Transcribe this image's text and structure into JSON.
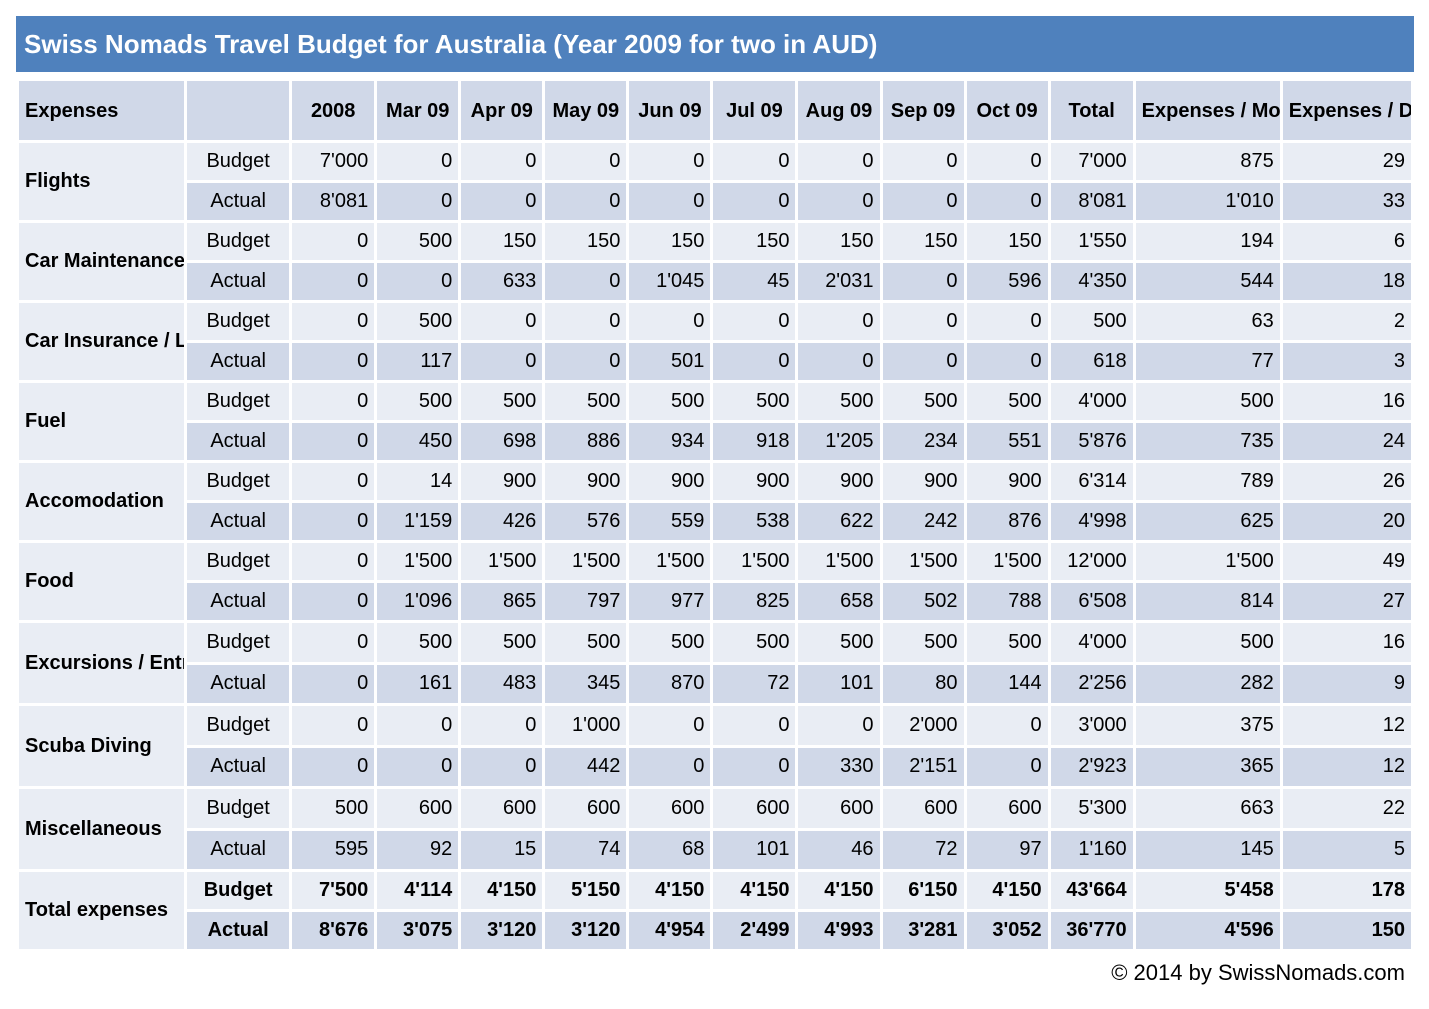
{
  "title": "Swiss Nomads Travel Budget for Australia (Year 2009 for two in AUD)",
  "headers": [
    "Expenses",
    "",
    "2008",
    "Mar 09",
    "Apr 09",
    "May 09",
    "Jun 09",
    "Jul 09",
    "Aug 09",
    "Sep 09",
    "Oct 09",
    "Total",
    "Expenses / Month",
    "Expenses / Day"
  ],
  "categories": [
    {
      "name": "Flights",
      "rows": [
        {
          "type": "Budget",
          "values": [
            "7'000",
            "0",
            "0",
            "0",
            "0",
            "0",
            "0",
            "0",
            "0",
            "7'000",
            "875",
            "29"
          ]
        },
        {
          "type": "Actual",
          "values": [
            "8'081",
            "0",
            "0",
            "0",
            "0",
            "0",
            "0",
            "0",
            "0",
            "8'081",
            "1'010",
            "33"
          ]
        }
      ]
    },
    {
      "name": "Car Maintenance",
      "rows": [
        {
          "type": "Budget",
          "values": [
            "0",
            "500",
            "150",
            "150",
            "150",
            "150",
            "150",
            "150",
            "150",
            "1'550",
            "194",
            "6"
          ]
        },
        {
          "type": "Actual",
          "values": [
            "0",
            "0",
            "633",
            "0",
            "1'045",
            "45",
            "2'031",
            "0",
            "596",
            "4'350",
            "544",
            "18"
          ]
        }
      ]
    },
    {
      "name": "Car Insurance / Licence",
      "rows": [
        {
          "type": "Budget",
          "values": [
            "0",
            "500",
            "0",
            "0",
            "0",
            "0",
            "0",
            "0",
            "0",
            "500",
            "63",
            "2"
          ]
        },
        {
          "type": "Actual",
          "values": [
            "0",
            "117",
            "0",
            "0",
            "501",
            "0",
            "0",
            "0",
            "0",
            "618",
            "77",
            "3"
          ]
        }
      ]
    },
    {
      "name": "Fuel",
      "rows": [
        {
          "type": "Budget",
          "values": [
            "0",
            "500",
            "500",
            "500",
            "500",
            "500",
            "500",
            "500",
            "500",
            "4'000",
            "500",
            "16"
          ]
        },
        {
          "type": "Actual",
          "values": [
            "0",
            "450",
            "698",
            "886",
            "934",
            "918",
            "1'205",
            "234",
            "551",
            "5'876",
            "735",
            "24"
          ]
        }
      ]
    },
    {
      "name": "Accomodation",
      "rows": [
        {
          "type": "Budget",
          "values": [
            "0",
            "14",
            "900",
            "900",
            "900",
            "900",
            "900",
            "900",
            "900",
            "6'314",
            "789",
            "26"
          ]
        },
        {
          "type": "Actual",
          "values": [
            "0",
            "1'159",
            "426",
            "576",
            "559",
            "538",
            "622",
            "242",
            "876",
            "4'998",
            "625",
            "20"
          ]
        }
      ]
    },
    {
      "name": "Food",
      "rows": [
        {
          "type": "Budget",
          "values": [
            "0",
            "1'500",
            "1'500",
            "1'500",
            "1'500",
            "1'500",
            "1'500",
            "1'500",
            "1'500",
            "12'000",
            "1'500",
            "49"
          ]
        },
        {
          "type": "Actual",
          "values": [
            "0",
            "1'096",
            "865",
            "797",
            "977",
            "825",
            "658",
            "502",
            "788",
            "6'508",
            "814",
            "27"
          ]
        }
      ]
    },
    {
      "name": "Excursions / Entrance fees",
      "rows": [
        {
          "type": "Budget",
          "values": [
            "0",
            "500",
            "500",
            "500",
            "500",
            "500",
            "500",
            "500",
            "500",
            "4'000",
            "500",
            "16"
          ]
        },
        {
          "type": "Actual",
          "values": [
            "0",
            "161",
            "483",
            "345",
            "870",
            "72",
            "101",
            "80",
            "144",
            "2'256",
            "282",
            "9"
          ]
        }
      ]
    },
    {
      "name": "Scuba Diving",
      "rows": [
        {
          "type": "Budget",
          "values": [
            "0",
            "0",
            "0",
            "1'000",
            "0",
            "0",
            "0",
            "2'000",
            "0",
            "3'000",
            "375",
            "12"
          ]
        },
        {
          "type": "Actual",
          "values": [
            "0",
            "0",
            "0",
            "442",
            "0",
            "0",
            "330",
            "2'151",
            "0",
            "2'923",
            "365",
            "12"
          ]
        }
      ]
    },
    {
      "name": "Miscellaneous",
      "rows": [
        {
          "type": "Budget",
          "values": [
            "500",
            "600",
            "600",
            "600",
            "600",
            "600",
            "600",
            "600",
            "600",
            "5'300",
            "663",
            "22"
          ]
        },
        {
          "type": "Actual",
          "values": [
            "595",
            "92",
            "15",
            "74",
            "68",
            "101",
            "46",
            "72",
            "97",
            "1'160",
            "145",
            "5"
          ]
        }
      ]
    },
    {
      "name": "Total expenses",
      "total": true,
      "rows": [
        {
          "type": "Budget",
          "values": [
            "7'500",
            "4'114",
            "4'150",
            "5'150",
            "4'150",
            "4'150",
            "4'150",
            "6'150",
            "4'150",
            "43'664",
            "5'458",
            "178"
          ]
        },
        {
          "type": "Actual",
          "values": [
            "8'676",
            "3'075",
            "3'120",
            "3'120",
            "4'954",
            "2'499",
            "4'993",
            "3'281",
            "3'052",
            "36'770",
            "4'596",
            "150"
          ]
        }
      ]
    }
  ],
  "copyright": "© 2014 by SwissNomads.com"
}
